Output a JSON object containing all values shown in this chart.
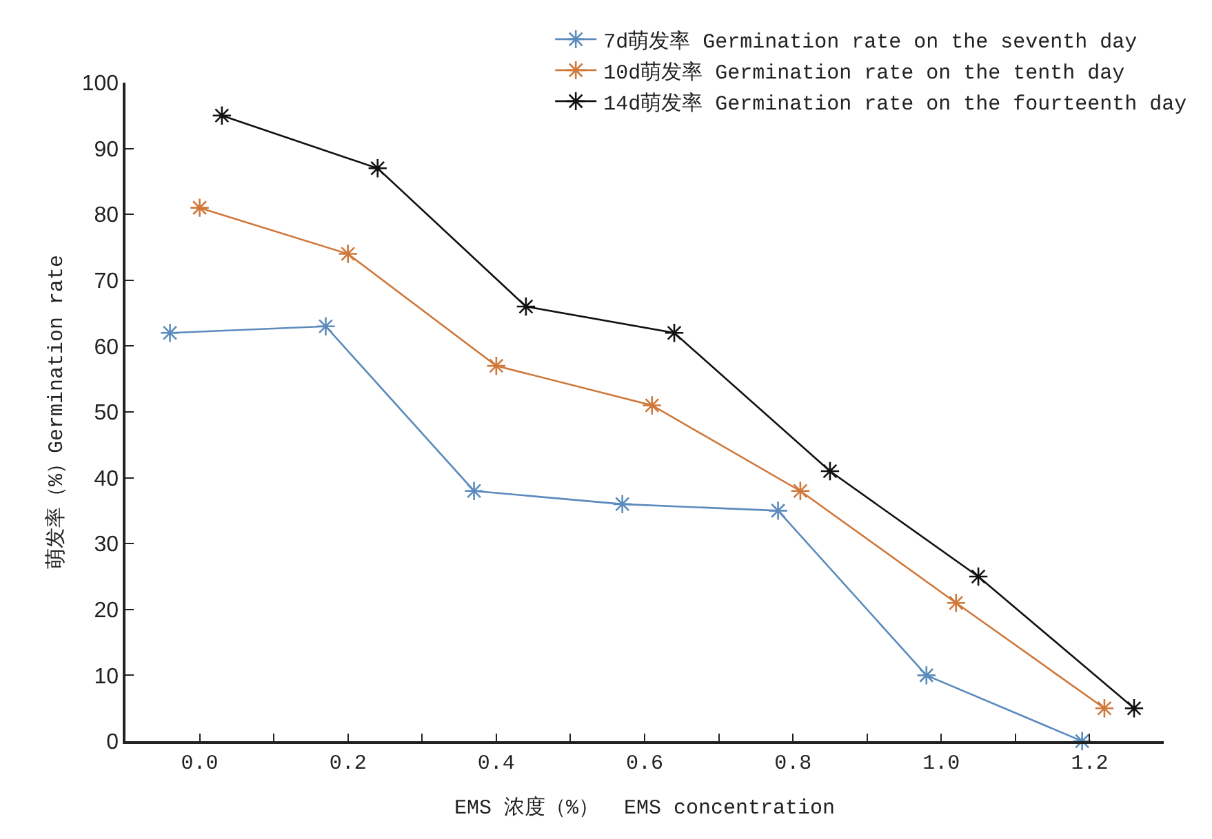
{
  "chart_data": {
    "type": "line",
    "xlabel": "EMS 浓度（%）  EMS concentration",
    "ylabel": "萌发率（%）Germination rate",
    "xlim": [
      -0.1,
      1.3
    ],
    "xticks": [
      {
        "value": 0,
        "label": "0.0"
      },
      {
        "value": 0.1,
        "label": null
      },
      {
        "value": 0.2,
        "label": "0.2"
      },
      {
        "value": 0.3,
        "label": null
      },
      {
        "value": 0.4,
        "label": "0.4"
      },
      {
        "value": 0.5,
        "label": null
      },
      {
        "value": 0.6,
        "label": "0.6"
      },
      {
        "value": 0.7,
        "label": null
      },
      {
        "value": 0.8,
        "label": "0.8"
      },
      {
        "value": 0.9,
        "label": null
      },
      {
        "value": 1.0,
        "label": "1.0"
      },
      {
        "value": 1.1,
        "label": null
      },
      {
        "value": 1.2,
        "label": "1.2"
      }
    ],
    "ylim": [
      0,
      100
    ],
    "yticks": [
      0,
      10,
      20,
      30,
      40,
      50,
      60,
      70,
      80,
      90,
      100
    ],
    "grid": false,
    "legend": "top right",
    "marker": "cross",
    "line_style": "solid",
    "series": [
      {
        "name": "7d萌发率 Germination rate on the seventh day",
        "color": "#5b8bbd",
        "x": [
          -0.04,
          0.17,
          0.37,
          0.57,
          0.78,
          0.98,
          1.19
        ],
        "values": [
          62,
          63,
          38,
          36,
          35,
          10,
          0
        ]
      },
      {
        "name": "10d萌发率 Germination rate on the tenth day",
        "color": "#d0773a",
        "x": [
          0.0,
          0.2,
          0.4,
          0.61,
          0.81,
          1.02,
          1.22
        ],
        "values": [
          81,
          74,
          57,
          51,
          38,
          21,
          5
        ]
      },
      {
        "name": "14d萌发率 Germination rate on the fourteenth day",
        "color": "#111111",
        "x": [
          0.03,
          0.24,
          0.44,
          0.64,
          0.85,
          1.05,
          1.26
        ],
        "values": [
          95,
          87,
          66,
          62,
          41,
          25,
          5
        ]
      }
    ]
  }
}
